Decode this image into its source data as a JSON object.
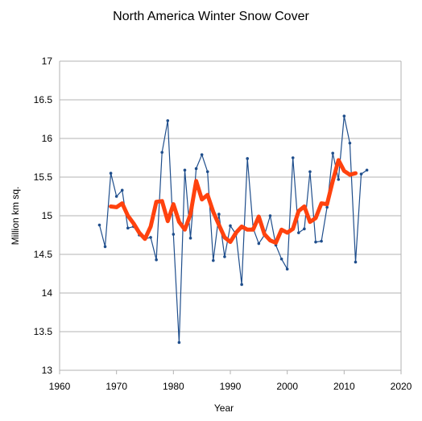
{
  "chart_data": {
    "type": "line",
    "title": "North America Winter Snow Cover",
    "xlabel": "Year",
    "ylabel": "Million km sq.",
    "xlim": [
      1960,
      2020
    ],
    "ylim": [
      13,
      17
    ],
    "xticks": [
      "1960",
      "1970",
      "1980",
      "1990",
      "2000",
      "2010",
      "2020"
    ],
    "yticks": [
      "13",
      "13.5",
      "14",
      "14.5",
      "15",
      "15.5",
      "16",
      "16.5",
      "17"
    ],
    "grid": "horizontal",
    "colors": {
      "annual": "#1f4e8c",
      "smoothed": "#ff420e",
      "grid": "#b3b3b3"
    },
    "series": [
      {
        "x": [
          1967,
          1968,
          1969,
          1970,
          1971,
          1972,
          1973,
          1974,
          1975,
          1976,
          1977,
          1978,
          1979,
          1980,
          1981,
          1982,
          1983,
          1984,
          1985,
          1986,
          1987,
          1988,
          1989,
          1990,
          1991,
          1992,
          1993,
          1994,
          1995,
          1996,
          1997,
          1998,
          1999,
          2000,
          2001,
          2002,
          2003,
          2004,
          2005,
          2006,
          2007,
          2008,
          2009,
          2010,
          2011,
          2012,
          2013,
          2014
        ],
        "values": [
          14.88,
          14.6,
          15.55,
          15.25,
          15.33,
          14.84,
          14.86,
          14.75,
          14.7,
          14.72,
          14.43,
          15.82,
          16.23,
          14.76,
          13.36,
          15.59,
          14.71,
          15.61,
          15.79,
          15.57,
          14.42,
          15.02,
          14.47,
          14.87,
          14.76,
          14.11,
          15.74,
          14.84,
          14.64,
          14.75,
          15.0,
          14.62,
          14.44,
          14.31,
          15.75,
          14.78,
          14.83,
          15.57,
          14.66,
          14.67,
          15.11,
          15.81,
          15.47,
          16.29,
          15.94,
          14.4,
          15.54,
          15.59
        ]
      },
      {
        "x": [
          1969,
          1970,
          1971,
          1972,
          1973,
          1974,
          1975,
          1976,
          1977,
          1978,
          1979,
          1980,
          1981,
          1982,
          1983,
          1984,
          1985,
          1986,
          1987,
          1988,
          1989,
          1990,
          1991,
          1992,
          1993,
          1994,
          1995,
          1996,
          1997,
          1998,
          1999,
          2000,
          2001,
          2002,
          2003,
          2004,
          2005,
          2006,
          2007,
          2008,
          2009,
          2010,
          2011,
          2012
        ],
        "values": [
          15.12,
          15.11,
          15.16,
          15.0,
          14.9,
          14.78,
          14.7,
          14.86,
          15.18,
          15.19,
          14.93,
          15.15,
          14.92,
          14.82,
          15.02,
          15.45,
          15.21,
          15.27,
          15.05,
          14.88,
          14.72,
          14.66,
          14.78,
          14.86,
          14.82,
          14.82,
          14.99,
          14.76,
          14.68,
          14.65,
          14.82,
          14.78,
          14.83,
          15.06,
          15.12,
          14.92,
          14.97,
          15.16,
          15.15,
          15.45,
          15.72,
          15.58,
          15.53,
          15.55
        ]
      }
    ]
  }
}
